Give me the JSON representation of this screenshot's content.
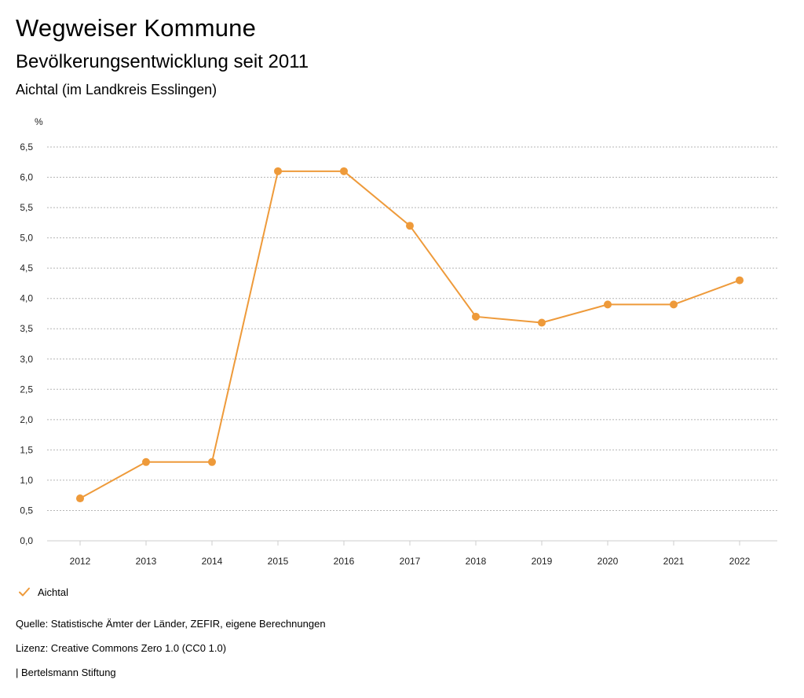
{
  "header": {
    "title": "Wegweiser Kommune",
    "subtitle": "Bevölkerungsentwicklung seit 2011",
    "region": "Aichtal (im Landkreis Esslingen)"
  },
  "chart_data": {
    "type": "line",
    "title": "Bevölkerungsentwicklung seit 2011",
    "xlabel": "",
    "ylabel": "%",
    "categories": [
      "2012",
      "2013",
      "2014",
      "2015",
      "2016",
      "2017",
      "2018",
      "2019",
      "2020",
      "2021",
      "2022"
    ],
    "series": [
      {
        "name": "Aichtal",
        "values": [
          0.7,
          1.3,
          1.3,
          6.1,
          6.1,
          5.2,
          3.7,
          3.6,
          3.9,
          3.9,
          4.3
        ]
      }
    ],
    "ylim": [
      0,
      6.5
    ],
    "yticks": [
      "0,0",
      "0,5",
      "1,0",
      "1,5",
      "2,0",
      "2,5",
      "3,0",
      "3,5",
      "4,0",
      "4,5",
      "5,0",
      "5,5",
      "6,0",
      "6,5"
    ],
    "grid": true,
    "legend_position": "bottom-left"
  },
  "legend": {
    "label": "Aichtal",
    "icon": "checkmark-icon"
  },
  "footer": {
    "source": "Quelle: Statistische Ämter der Länder, ZEFIR, eigene Berechnungen",
    "license": "Lizenz: Creative Commons Zero 1.0 (CC0 1.0)",
    "publisher": "| Bertelsmann Stiftung"
  },
  "colors": {
    "series": "#ee9a3a",
    "grid": "#b5b5b5",
    "axis": "#cccccc"
  }
}
